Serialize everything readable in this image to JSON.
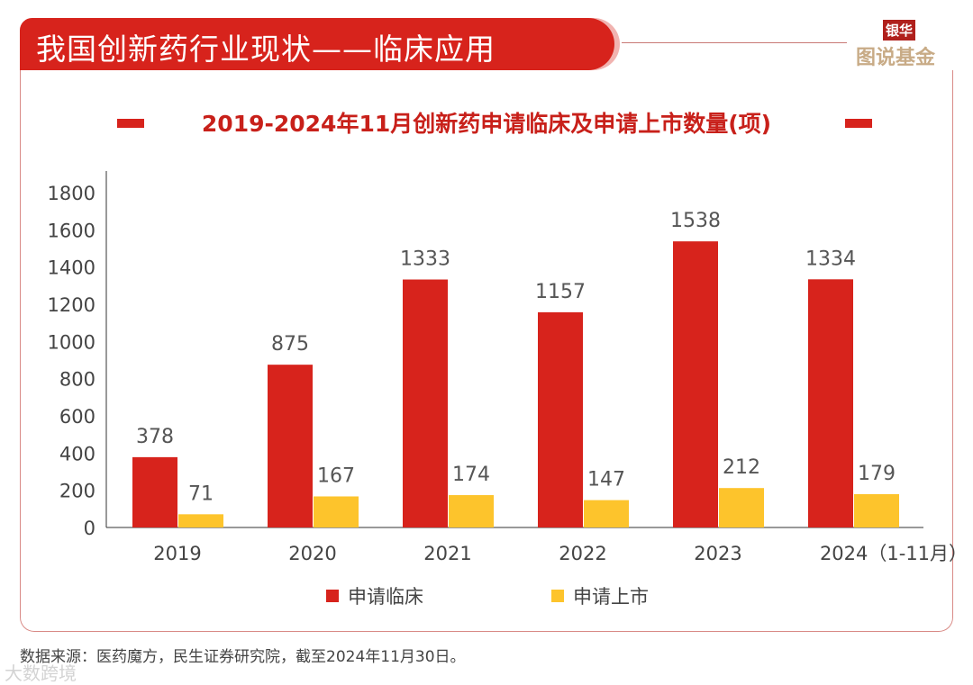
{
  "header": {
    "title": "我国创新药行业现状——临床应用",
    "logo_top": "银华",
    "logo_bottom": "图说基金"
  },
  "footer": {
    "source": "数据来源：医药魔方，民生证券研究院，截至2024年11月30日。",
    "watermark": "大数跨境"
  },
  "colors": {
    "red": "#d7231c",
    "yellow": "#fdc42c"
  },
  "chart_data": {
    "type": "bar",
    "title": "2019-2024年11月创新药申请临床及申请上市数量(项)",
    "categories": [
      "2019",
      "2020",
      "2021",
      "2022",
      "2023",
      "2024（1-11月）"
    ],
    "series": [
      {
        "name": "申请临床",
        "values": [
          378,
          875,
          1333,
          1157,
          1538,
          1334
        ]
      },
      {
        "name": "申请上市",
        "values": [
          71,
          167,
          174,
          147,
          212,
          179
        ]
      }
    ],
    "yticks": [
      "0",
      "200",
      "400",
      "600",
      "800",
      "1000",
      "1200",
      "1400",
      "1600",
      "1800"
    ],
    "ylim": [
      0,
      1800
    ],
    "legend": "bottom",
    "grid": false
  }
}
